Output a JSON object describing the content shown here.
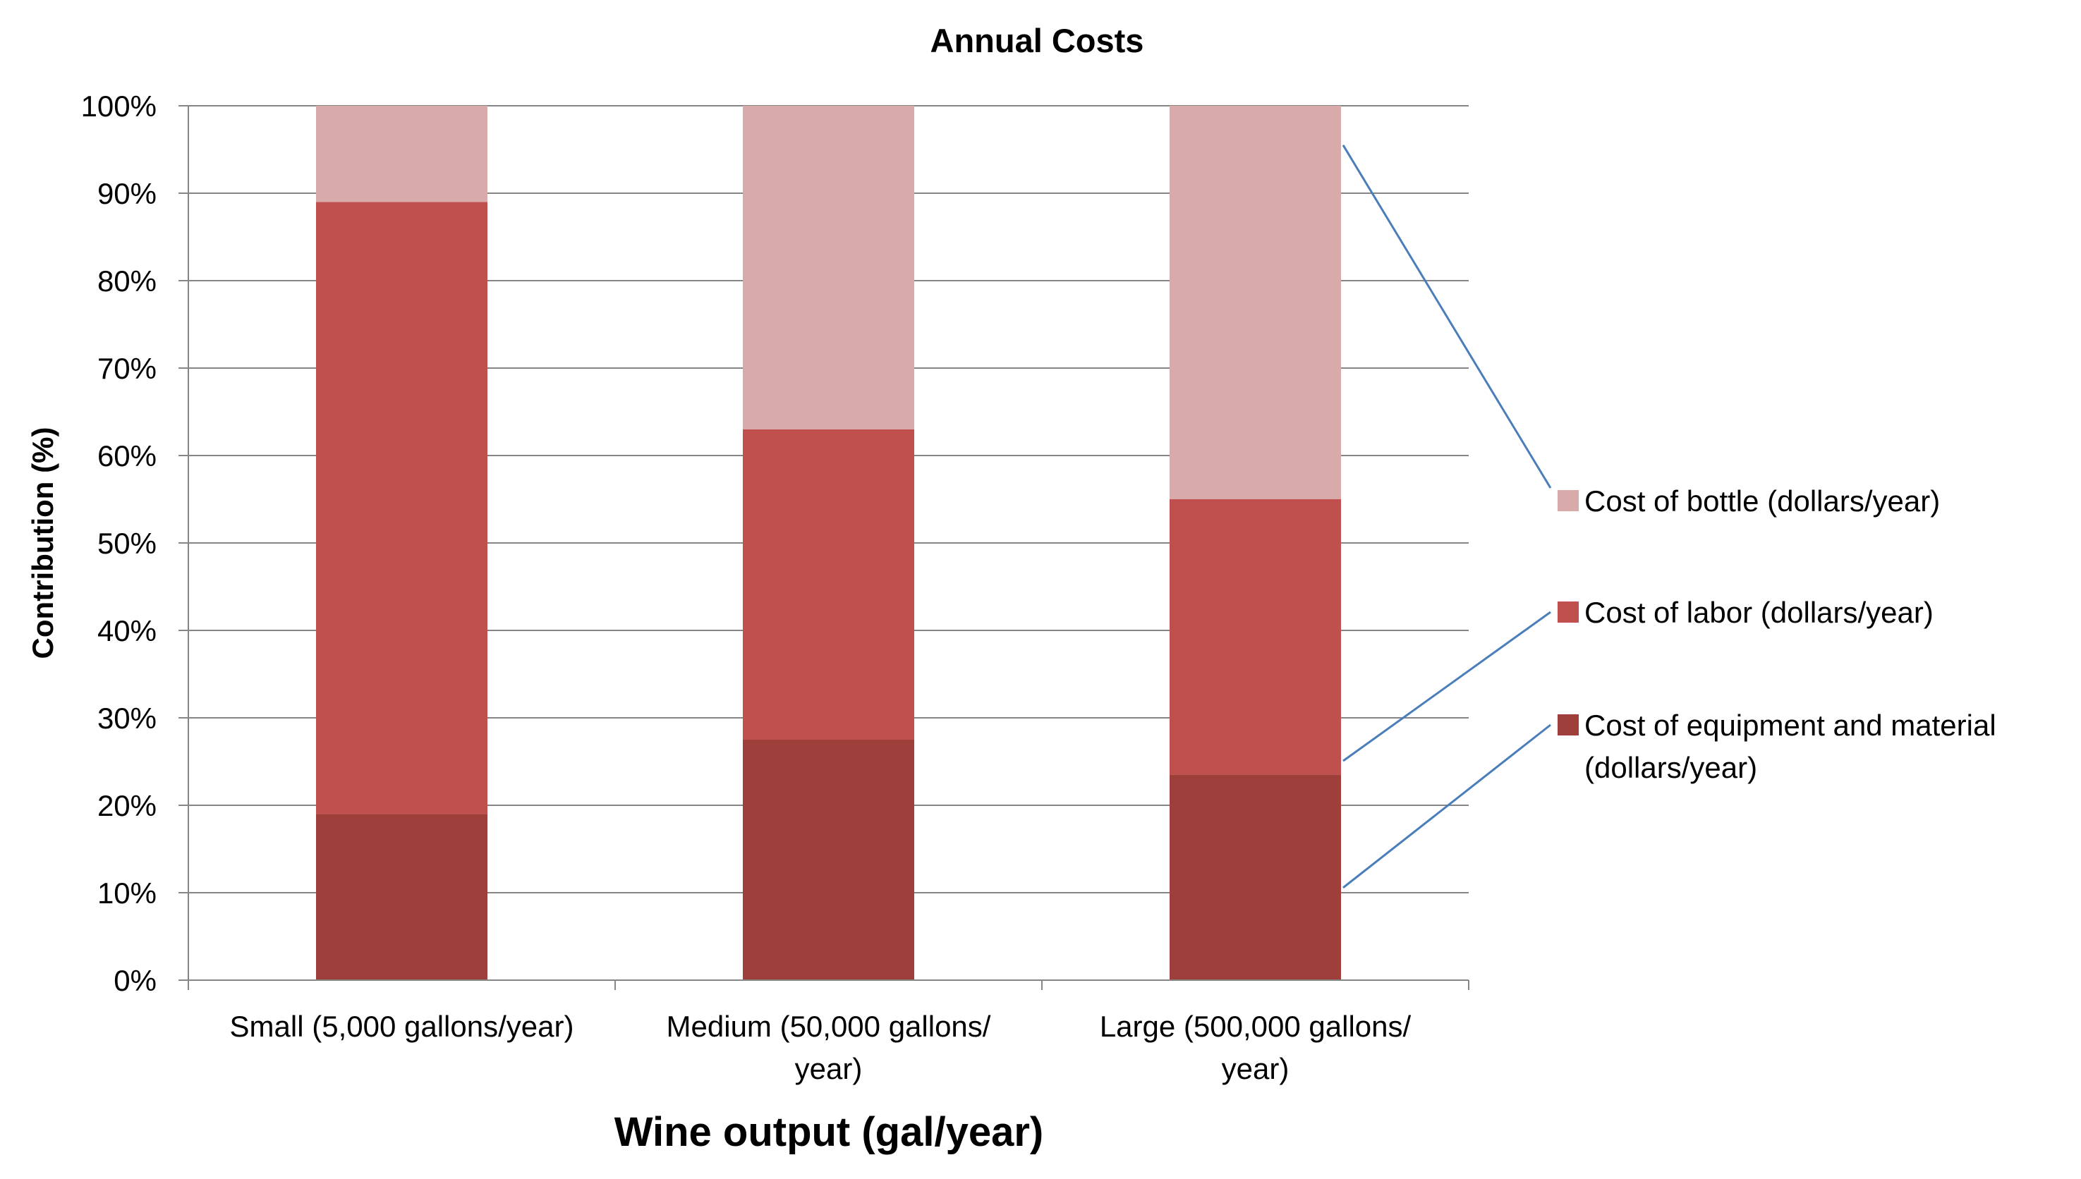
{
  "chart_data": {
    "type": "bar",
    "stacked": true,
    "title": "Annual Costs",
    "xlabel": "Wine output (gal/year)",
    "ylabel": "Contribution (%)",
    "ylim": [
      0,
      100
    ],
    "yticks": [
      "0%",
      "10%",
      "20%",
      "30%",
      "40%",
      "50%",
      "60%",
      "70%",
      "80%",
      "90%",
      "100%"
    ],
    "categories": [
      [
        "Small (5,000 gallons/year)"
      ],
      [
        "Medium (50,000 gallons/",
        "year)"
      ],
      [
        "Large (500,000 gallons/",
        "year)"
      ]
    ],
    "series": [
      {
        "name": [
          "Cost of equipment and material",
          "(dollars/year)"
        ],
        "color": "#9e3f3c",
        "values": [
          19,
          27.5,
          23.5
        ]
      },
      {
        "name": [
          "Cost of labor (dollars/year)"
        ],
        "color": "#c0504d",
        "values": [
          70,
          35.5,
          31.5
        ]
      },
      {
        "name": [
          "Cost of bottle (dollars/year)"
        ],
        "color": "#d9aaaa",
        "values": [
          11,
          37,
          45
        ]
      }
    ],
    "grid": true,
    "legend": "right",
    "colors": {
      "grid": "#868686",
      "leader": "#4a7ebb"
    }
  }
}
